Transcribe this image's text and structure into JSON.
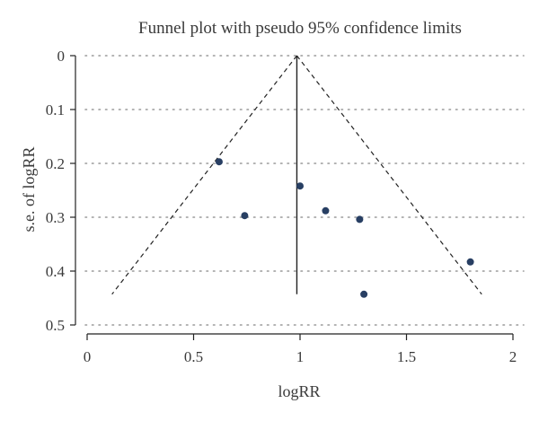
{
  "chart_data": {
    "type": "scatter",
    "title": "Funnel plot with pseudo 95% confidence limits",
    "xlabel": "logRR",
    "ylabel": "s.e. of logRR",
    "xlim": [
      0,
      2
    ],
    "ylim": [
      0.5,
      0
    ],
    "y_axis_inverted": true,
    "xticks": [
      "0",
      "0.5",
      "1",
      "1.5",
      "2"
    ],
    "yticks": [
      "0",
      "0.1",
      "0.2",
      "0.3",
      "0.4",
      "0.5"
    ],
    "grid": "horizontal dotted",
    "points": [
      {
        "x": 0.62,
        "y": 0.197
      },
      {
        "x": 0.74,
        "y": 0.297
      },
      {
        "x": 1.0,
        "y": 0.242
      },
      {
        "x": 1.12,
        "y": 0.288
      },
      {
        "x": 1.28,
        "y": 0.304
      },
      {
        "x": 1.3,
        "y": 0.443
      },
      {
        "x": 1.8,
        "y": 0.383
      }
    ],
    "pooled_estimate": 0.985,
    "se_max": 0.443,
    "confidence_limits": "pseudo 95%",
    "colors": {
      "points": "#283f63",
      "lines": "#222222",
      "grid": "#9a9a9a",
      "text": "#3a3a3a"
    }
  }
}
